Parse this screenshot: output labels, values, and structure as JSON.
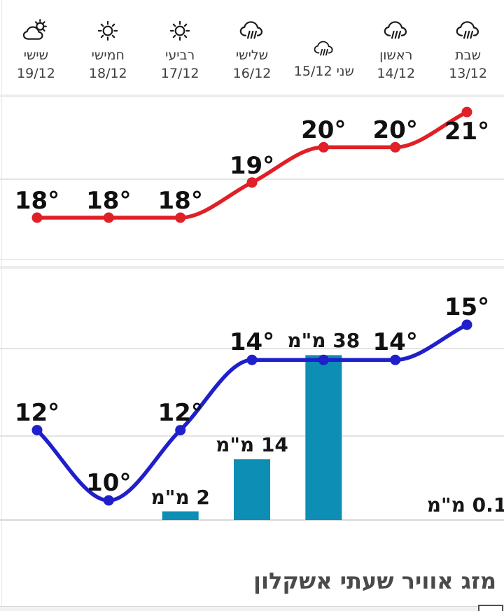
{
  "widget": {
    "title": "מזג אוויר שעתי אשקלון",
    "location": "אשקלון"
  },
  "days": [
    {
      "name": "שבת",
      "date": "13/12",
      "icon": "rain"
    },
    {
      "name": "ראשון",
      "date": "14/12",
      "icon": "rain"
    },
    {
      "name": "שני",
      "date": "15/12",
      "icon": "rain",
      "inline": true
    },
    {
      "name": "שלישי",
      "date": "16/12",
      "icon": "rain"
    },
    {
      "name": "רביעי",
      "date": "17/12",
      "icon": "sun"
    },
    {
      "name": "חמישי",
      "date": "18/12",
      "icon": "sun"
    },
    {
      "name": "שישי",
      "date": "19/12",
      "icon": "partly-cloudy"
    }
  ],
  "chart_data": {
    "order": "right-to-left chronological",
    "categories": [
      "שבת 13/12",
      "ראשון 14/12",
      "שני 15/12",
      "שלישי 16/12",
      "רביעי 17/12",
      "חמישי 18/12",
      "שישי 19/12"
    ],
    "series": [
      {
        "type": "line",
        "name": "max-temp-c",
        "color": "#e01f26",
        "values": [
          21,
          20,
          20,
          19,
          18,
          18,
          18
        ],
        "labels": [
          "21°",
          "20°",
          "20°",
          "19°",
          "18°",
          "18°",
          "18°"
        ]
      },
      {
        "type": "line",
        "name": "min-temp-c",
        "color": "#1f1fcb",
        "values": [
          15,
          14,
          14,
          14,
          12,
          10,
          12
        ],
        "labels": [
          "15°",
          "14°",
          null,
          "14°",
          "12°",
          "10°",
          "12°"
        ]
      },
      {
        "type": "bar",
        "name": "precipitation-mm",
        "color": "#0d8eb4",
        "values": [
          0.1,
          0,
          38,
          14,
          2,
          0,
          0
        ],
        "labels": [
          "0.1 מ\"מ",
          null,
          "38 מ\"מ",
          "14 מ\"מ",
          "2 מ\"מ",
          null,
          null
        ]
      }
    ],
    "grid": true,
    "legend": false
  }
}
